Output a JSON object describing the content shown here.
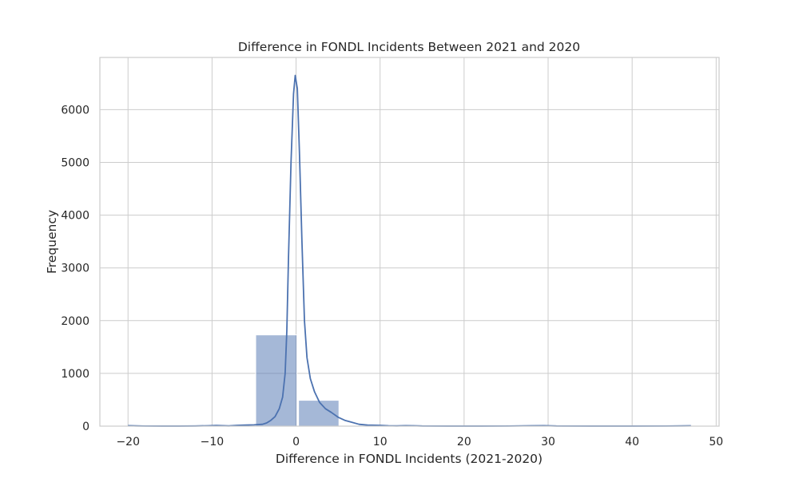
{
  "chart_data": {
    "type": "bar",
    "title": "Difference in FONDL Incidents Between 2021 and 2020",
    "xlabel": "Difference in FONDL Incidents (2021-2020)",
    "ylabel": "Frequency",
    "xlim": [
      -23.35,
      50.35
    ],
    "ylim": [
      0,
      6990
    ],
    "x_ticks": [
      -20,
      -10,
      0,
      10,
      20,
      30,
      40,
      50
    ],
    "x_tick_labels": [
      "−20",
      "−10",
      "0",
      "10",
      "20",
      "30",
      "40",
      "50"
    ],
    "y_ticks": [
      0,
      1000,
      2000,
      3000,
      4000,
      5000,
      6000
    ],
    "y_tick_labels": [
      "0",
      "1000",
      "2000",
      "3000",
      "4000",
      "5000",
      "6000"
    ],
    "grid": true,
    "bin_edges": [
      -20,
      -15.1,
      -10.2,
      -5.3,
      -0.4,
      4.6,
      9.5,
      14.4,
      19.3,
      24.2,
      29.1,
      34.0,
      38.9,
      43.8,
      48.7
    ],
    "bar_color": "#4c72b0",
    "bar_opacity": 0.5,
    "series": [
      {
        "kind": "histogram",
        "bins": [
          {
            "x0": -20.0,
            "x1": -15.0,
            "count": 5
          },
          {
            "x0": -15.0,
            "x1": -9.9,
            "count": 2
          },
          {
            "x0": -9.9,
            "x1": -4.9,
            "count": 10
          },
          {
            "x0": -4.9,
            "x1": 0.2,
            "count": 1730
          },
          {
            "x0": 0.2,
            "x1": 5.2,
            "count": 490
          },
          {
            "x0": 5.2,
            "x1": 10.3,
            "count": 15
          },
          {
            "x0": 10.3,
            "x1": 15.3,
            "count": 8
          },
          {
            "x0": 15.3,
            "x1": 20.4,
            "count": 2
          },
          {
            "x0": 20.4,
            "x1": 25.4,
            "count": 1
          },
          {
            "x0": 25.4,
            "x1": 30.5,
            "count": 3
          },
          {
            "x0": 30.5,
            "x1": 35.5,
            "count": 1
          },
          {
            "x0": 35.5,
            "x1": 40.6,
            "count": 1
          },
          {
            "x0": 40.6,
            "x1": 45.6,
            "count": 1
          },
          {
            "x0": 45.6,
            "x1": 50.7,
            "count": 2
          }
        ]
      },
      {
        "kind": "kde",
        "color": "#4c72b0",
        "points": [
          [
            -20,
            10
          ],
          [
            -19,
            5
          ],
          [
            -18,
            2
          ],
          [
            -16,
            1
          ],
          [
            -14,
            1
          ],
          [
            -12,
            3
          ],
          [
            -10.5,
            8
          ],
          [
            -9.5,
            12
          ],
          [
            -8,
            5
          ],
          [
            -7,
            15
          ],
          [
            -6,
            20
          ],
          [
            -5,
            25
          ],
          [
            -4,
            35
          ],
          [
            -3.5,
            60
          ],
          [
            -3,
            110
          ],
          [
            -2.5,
            180
          ],
          [
            -2,
            330
          ],
          [
            -1.6,
            550
          ],
          [
            -1.3,
            1000
          ],
          [
            -1.1,
            1800
          ],
          [
            -0.9,
            3200
          ],
          [
            -0.6,
            5000
          ],
          [
            -0.3,
            6300
          ],
          [
            -0.1,
            6650
          ],
          [
            0.15,
            6400
          ],
          [
            0.4,
            5200
          ],
          [
            0.7,
            3500
          ],
          [
            1.0,
            2000
          ],
          [
            1.3,
            1300
          ],
          [
            1.7,
            900
          ],
          [
            2.2,
            650
          ],
          [
            2.8,
            450
          ],
          [
            3.5,
            330
          ],
          [
            4.2,
            260
          ],
          [
            5.0,
            170
          ],
          [
            5.8,
            110
          ],
          [
            6.5,
            80
          ],
          [
            7.5,
            35
          ],
          [
            8.5,
            20
          ],
          [
            10,
            15
          ],
          [
            11,
            8
          ],
          [
            12,
            5
          ],
          [
            13,
            10
          ],
          [
            14,
            8
          ],
          [
            15,
            3
          ],
          [
            18,
            1
          ],
          [
            22,
            1
          ],
          [
            25,
            2
          ],
          [
            28,
            8
          ],
          [
            29.5,
            10
          ],
          [
            31,
            3
          ],
          [
            35,
            1
          ],
          [
            40,
            1
          ],
          [
            44,
            2
          ],
          [
            46,
            5
          ],
          [
            47,
            7
          ]
        ]
      }
    ]
  }
}
